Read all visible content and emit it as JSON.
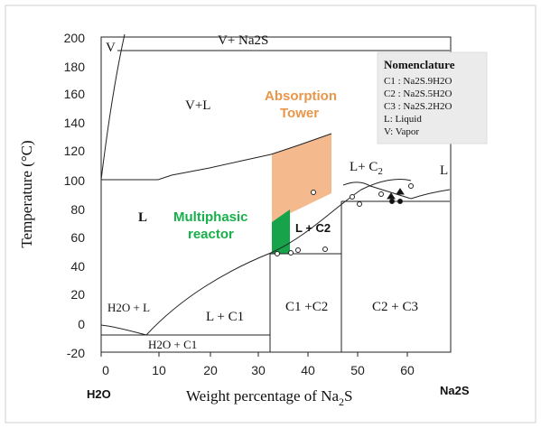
{
  "axes": {
    "x_title": "Weight percentage of Na",
    "x_title_sub": "2",
    "x_title_end": "S",
    "y_title": "Temperature (°C)",
    "x_ticks": [
      "0",
      "10",
      "20",
      "30",
      "40",
      "50",
      "60"
    ],
    "y_ticks": [
      "200",
      "180",
      "160",
      "140",
      "120",
      "100",
      "80",
      "60",
      "40",
      "20",
      "0",
      "-20"
    ],
    "left_component": "H2O",
    "right_component": "Na2S"
  },
  "regions": {
    "v": "V",
    "v_na2s": "V+ Na2S",
    "v_l": "V+L",
    "l": "L",
    "l_c2_a": "L+ C",
    "l_c2_sub": "2",
    "l_cut": "L",
    "l_plus_c2": "L + C2",
    "h2o_l": "H2O + L",
    "l_c1": "L + C1",
    "c1_c2": "C1 +C2",
    "c2_c3": "C2 + C3",
    "h2o_c1": "H2O + C1"
  },
  "annotations": {
    "absorption_1": "Absorption",
    "absorption_2": "Tower",
    "multiphasic_1": "Multiphasic",
    "multiphasic_2": "reactor",
    "absorption_color": "#f5b98e",
    "reactor_color": "#16a34a"
  },
  "nomenclature": {
    "title": "Nomenclature",
    "items": [
      "C1 : Na2S.9H2O",
      "C2 : Na2S.5H2O",
      "C3 : Na2S.2H2O",
      "L: Liquid",
      "V: Vapor"
    ]
  }
}
